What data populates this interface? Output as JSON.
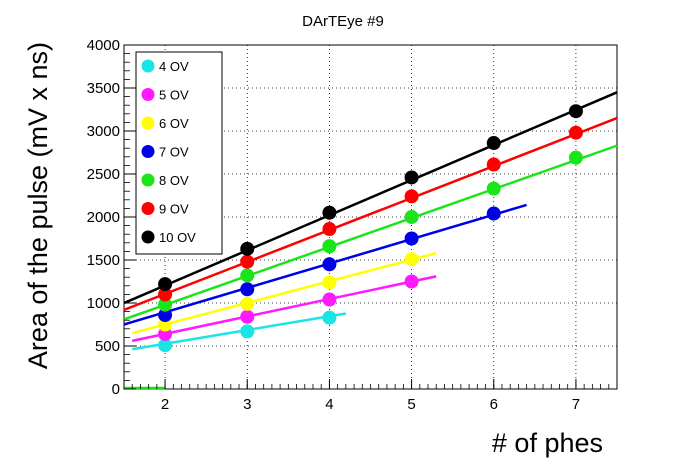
{
  "chart_data": {
    "type": "scatter",
    "title": "DArTEye #9",
    "xlabel": "# of phes",
    "ylabel": "Area of the pulse (mV x ns)",
    "xlim": [
      1.5,
      7.5
    ],
    "ylim": [
      0,
      4000
    ],
    "xticks": [
      2,
      3,
      4,
      5,
      6,
      7
    ],
    "yticks": [
      0,
      500,
      1000,
      1500,
      2000,
      2500,
      3000,
      3500,
      4000
    ],
    "grid": true,
    "legend_position": "top-left",
    "series": [
      {
        "name": "4 OV",
        "color": "#19e5e5",
        "x": [
          2,
          3,
          4
        ],
        "y": [
          510,
          670,
          830
        ],
        "fit": {
          "x0": 1.6,
          "x1": 4.2,
          "y0": 462,
          "y1": 878
        }
      },
      {
        "name": "5 OV",
        "color": "#ff19ff",
        "x": [
          2,
          3,
          4,
          5
        ],
        "y": [
          640,
          840,
          1040,
          1250
        ],
        "fit": {
          "x0": 1.6,
          "x1": 5.3,
          "y0": 560,
          "y1": 1310
        }
      },
      {
        "name": "6 OV",
        "color": "#ffff00",
        "x": [
          2,
          3,
          4,
          5
        ],
        "y": [
          750,
          990,
          1240,
          1510
        ],
        "fit": {
          "x0": 1.6,
          "x1": 5.3,
          "y0": 650,
          "y1": 1580
        }
      },
      {
        "name": "7 OV",
        "color": "#0000e6",
        "x": [
          2,
          3,
          4,
          5,
          6
        ],
        "y": [
          860,
          1160,
          1450,
          1750,
          2040
        ],
        "fit": {
          "x0": 1.5,
          "x1": 6.4,
          "y0": 750,
          "y1": 2140
        }
      },
      {
        "name": "8 OV",
        "color": "#19e519",
        "x": [
          2,
          3,
          4,
          5,
          6,
          7
        ],
        "y": [
          980,
          1320,
          1660,
          2000,
          2330,
          2690
        ],
        "fit": {
          "x0": 1.5,
          "x1": 7.5,
          "y0": 810,
          "y1": 2830
        }
      },
      {
        "name": "9 OV",
        "color": "#ff0000",
        "x": [
          2,
          3,
          4,
          5,
          6,
          7
        ],
        "y": [
          1100,
          1480,
          1860,
          2240,
          2610,
          2980
        ],
        "fit": {
          "x0": 1.5,
          "x1": 7.5,
          "y0": 920,
          "y1": 3150
        }
      },
      {
        "name": "10 OV",
        "color": "#000000",
        "x": [
          2,
          3,
          4,
          5,
          6,
          7
        ],
        "y": [
          1220,
          1630,
          2050,
          2460,
          2860,
          3230
        ],
        "fit": {
          "x0": 1.5,
          "x1": 7.5,
          "y0": 1000,
          "y1": 3450
        }
      }
    ],
    "extra_segment": {
      "color": "#19e519",
      "x0": 1.5,
      "x1": 2.0,
      "y": 0
    }
  }
}
